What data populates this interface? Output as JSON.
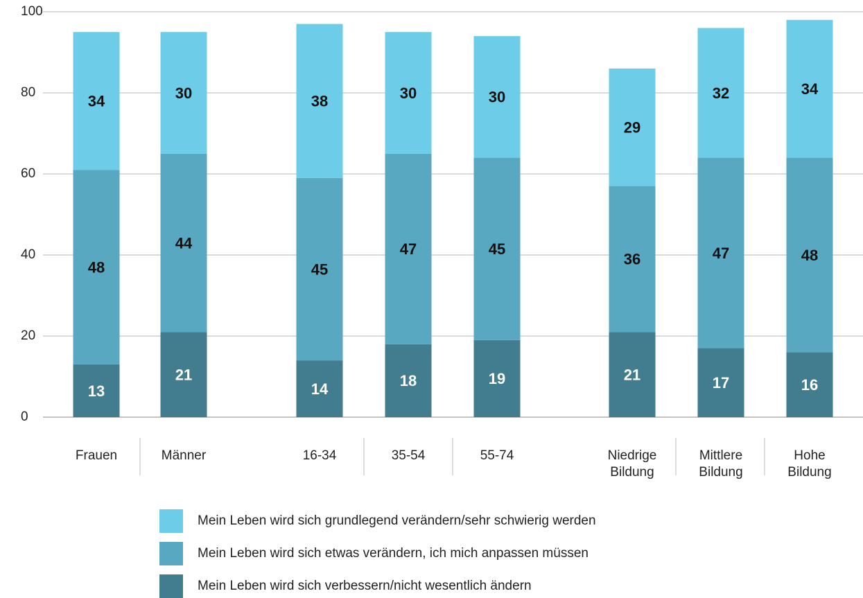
{
  "chart_data": {
    "type": "stacked_bar",
    "categories": [
      "Frauen",
      "Männer",
      "16-34",
      "35-54",
      "55-74",
      "Niedrige Bildung",
      "Mittlere Bildung",
      "Hohe Bildung"
    ],
    "series": [
      {
        "name": "Mein Leben wird sich verbessern/nicht wesentlich ändern",
        "color": "#417d8f",
        "values": [
          13,
          21,
          14,
          18,
          19,
          21,
          17,
          16
        ]
      },
      {
        "name": "Mein Leben wird sich etwas verändern, ich mich anpassen müssen",
        "color": "#58a8c2",
        "values": [
          48,
          44,
          45,
          47,
          45,
          36,
          47,
          48
        ]
      },
      {
        "name": "Mein Leben wird sich grundlegend verändern/sehr schwierig werden",
        "color": "#6dcde8",
        "values": [
          34,
          30,
          38,
          30,
          30,
          29,
          32,
          34
        ]
      }
    ],
    "ylim": [
      0,
      100
    ],
    "yticks": [
      0,
      20,
      40,
      60,
      80,
      100
    ],
    "grid": true
  }
}
